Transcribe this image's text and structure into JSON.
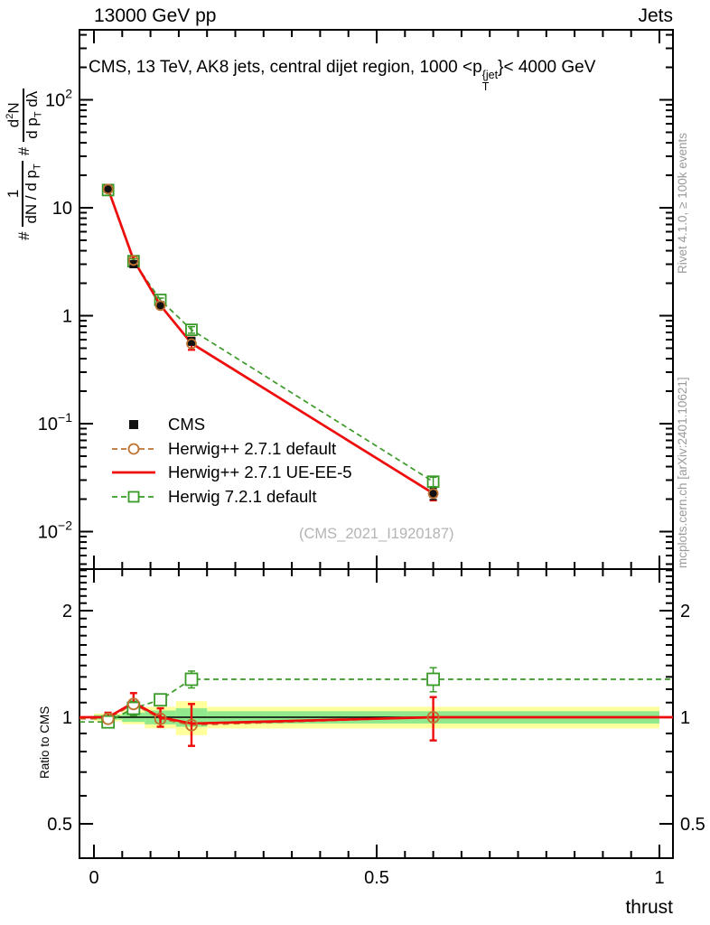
{
  "header": {
    "left": "13000 GeV pp",
    "right": "Jets"
  },
  "title": {
    "prefix": "CMS, 13 TeV, AK8 jets, central dijet region, 1000 <p",
    "sup": "{jet",
    "sub": "T",
    "suffix": "}< 4000 GeV"
  },
  "ylabel": {
    "hash1": "#",
    "f1num": "1",
    "f1den_a": "dN / d p",
    "f1den_sub": "T",
    "hash2": "#",
    "f2num_a": "d",
    "f2num_sup": "2",
    "f2num_b": "N",
    "f2den_a": "d p",
    "f2den_sub": "T",
    "f2den_b": " dλ"
  },
  "right_text": {
    "top": "Rivet 4.1.0, ≥ 100k events",
    "bottom": "mcplots.cern.ch [arXiv:2401.10621]"
  },
  "watermark": "(CMS_2021_I1920187)",
  "ratio_label": "Ratio to CMS",
  "xlabel": "thrust",
  "legend": [
    {
      "label": "CMS",
      "style": "square-filled",
      "color": "#111111"
    },
    {
      "label": "Herwig++ 2.7.1 default",
      "style": "circle-open-dashed",
      "color": "#bf7330"
    },
    {
      "label": "Herwig++ 2.7.1 UE-EE-5",
      "style": "line-solid",
      "color": "#ee0c0c"
    },
    {
      "label": "Herwig 7.2.1 default",
      "style": "square-open-dashed",
      "color": "#3a9a28"
    }
  ],
  "colors": {
    "cms": "#111111",
    "herwigpp_default": "#bf7330",
    "herwigpp_ueee5": "#ee0c0c",
    "herwig7_default": "#3a9a28",
    "band_outer": "#ffff9c",
    "band_inner": "#90e98c",
    "gray_text": "#9b9b9b",
    "watermark": "#b4b4b4"
  },
  "chart_data": {
    "type": "line",
    "title": "CMS, 13 TeV, AK8 jets, central dijet region, 1000 < pT{jet} < 4000 GeV",
    "xlabel": "thrust",
    "xlim": [
      0,
      1
    ],
    "xticks": {
      "values": [
        0,
        0.5,
        1
      ],
      "labels": [
        "0",
        "0.5",
        "1"
      ]
    },
    "x_minor_step": 0.05,
    "x": [
      0.025,
      0.07,
      0.1175,
      0.1725,
      0.6
    ],
    "bin_edges": [
      0,
      0.05,
      0.09,
      0.145,
      0.2,
      1.0
    ],
    "main": {
      "ylog": true,
      "ylim": [
        0.0045,
        445
      ],
      "ytick_decades": [
        2,
        1,
        0,
        -1,
        -2
      ],
      "series": [
        {
          "name": "CMS",
          "values": [
            15.0,
            3.0,
            1.25,
            0.58,
            0.0225
          ],
          "rel_errors": [
            0.04,
            0.05,
            0.06,
            0.08,
            0.12
          ]
        },
        {
          "name": "Herwig++ 2.7.1 default",
          "values": [
            14.9,
            3.25,
            1.24,
            0.55,
            0.0225
          ],
          "rel_errors": [
            0.03,
            0.07,
            0.06,
            0.13,
            0.14
          ]
        },
        {
          "name": "Herwig++ 2.7.1 UE-EE-5",
          "values": [
            15.0,
            3.3,
            1.25,
            0.555,
            0.0226
          ],
          "rel_errors": [
            0.03,
            0.07,
            0.06,
            0.13,
            0.14
          ]
        },
        {
          "name": "Herwig 7.2.1 default",
          "values": [
            14.6,
            3.2,
            1.4,
            0.74,
            0.029
          ],
          "rel_errors": [
            0.03,
            0.05,
            0.04,
            0.07,
            0.1
          ]
        }
      ]
    },
    "ratio": {
      "ylog": true,
      "ylim": [
        0.4,
        2.6
      ],
      "yticks": {
        "values": [
          2,
          1,
          0.5
        ],
        "labels": [
          "2",
          "1",
          "0.5"
        ]
      },
      "series": [
        {
          "name": "Herwig++ 2.7.1 default",
          "values": [
            0.99,
            1.09,
            0.99,
            0.95,
            1.0
          ],
          "errors": [
            0.03,
            0.07,
            0.06,
            0.13,
            0.14
          ]
        },
        {
          "name": "Herwig++ 2.7.1 UE-EE-5",
          "values": [
            1.0,
            1.1,
            1.0,
            0.96,
            1.0
          ],
          "errors": [
            0.03,
            0.07,
            0.06,
            0.13,
            0.14
          ]
        },
        {
          "name": "Herwig 7.2.1 default",
          "values": [
            0.97,
            1.06,
            1.12,
            1.28,
            1.28
          ],
          "errors": [
            0.03,
            0.05,
            0.04,
            0.07,
            0.1
          ]
        }
      ],
      "bands": {
        "outer": [
          0.025,
          0.045,
          0.07,
          0.11,
          0.07
        ],
        "inner": [
          0.015,
          0.03,
          0.045,
          0.06,
          0.04
        ]
      }
    }
  }
}
